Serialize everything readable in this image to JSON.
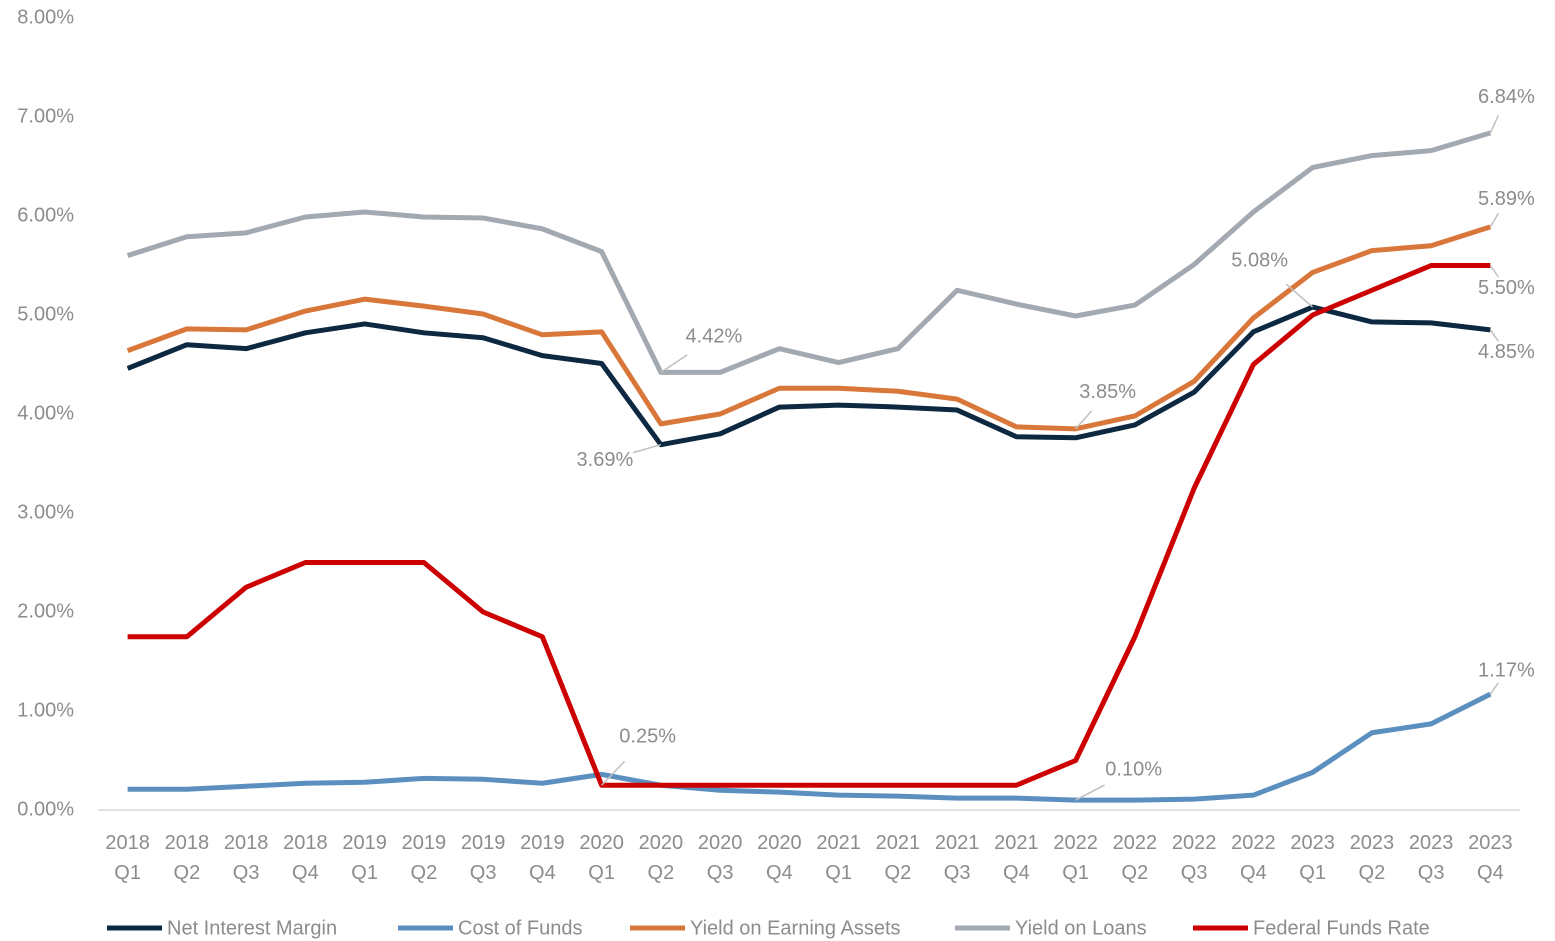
{
  "chart_data": {
    "type": "line",
    "categories": [
      "2018 Q1",
      "2018 Q2",
      "2018 Q3",
      "2018 Q4",
      "2019 Q1",
      "2019 Q2",
      "2019 Q3",
      "2019 Q4",
      "2020 Q1",
      "2020 Q2",
      "2020 Q3",
      "2020 Q4",
      "2021 Q1",
      "2021 Q2",
      "2021 Q3",
      "2021 Q4",
      "2022 Q1",
      "2022 Q2",
      "2022 Q3",
      "2022 Q4",
      "2023 Q1",
      "2023 Q2",
      "2023 Q3",
      "2023 Q4"
    ],
    "series": [
      {
        "name": "Net Interest Margin",
        "color": "#0d2841",
        "values": [
          4.46,
          4.7,
          4.66,
          4.82,
          4.91,
          4.82,
          4.77,
          4.59,
          4.51,
          3.69,
          3.8,
          4.07,
          4.09,
          4.07,
          4.04,
          3.77,
          3.76,
          3.89,
          4.22,
          4.83,
          5.08,
          4.93,
          4.92,
          4.85
        ],
        "value_labels": [
          null,
          null,
          null,
          null,
          null,
          null,
          null,
          null,
          null,
          "3.69%",
          null,
          null,
          null,
          null,
          null,
          null,
          null,
          null,
          null,
          null,
          "5.08%",
          null,
          null,
          "4.85%"
        ]
      },
      {
        "name": "Cost of Funds",
        "color": "#5b8fc0",
        "values": [
          0.21,
          0.21,
          0.24,
          0.27,
          0.28,
          0.32,
          0.31,
          0.27,
          0.36,
          0.25,
          0.2,
          0.18,
          0.15,
          0.14,
          0.12,
          0.12,
          0.1,
          0.1,
          0.11,
          0.15,
          0.38,
          0.78,
          0.87,
          1.17
        ],
        "value_labels": [
          null,
          null,
          null,
          null,
          null,
          null,
          null,
          null,
          null,
          null,
          null,
          null,
          null,
          null,
          null,
          null,
          "0.10%",
          null,
          null,
          null,
          null,
          null,
          null,
          "1.17%"
        ]
      },
      {
        "name": "Yield on Earning Assets",
        "color": "#d9773a",
        "values": [
          4.64,
          4.86,
          4.85,
          5.04,
          5.16,
          5.09,
          5.01,
          4.8,
          4.83,
          3.9,
          4.0,
          4.26,
          4.26,
          4.23,
          4.15,
          3.87,
          3.85,
          3.98,
          4.33,
          4.97,
          5.43,
          5.65,
          5.7,
          5.89
        ],
        "value_labels": [
          null,
          null,
          null,
          null,
          null,
          null,
          null,
          null,
          null,
          null,
          null,
          null,
          null,
          null,
          null,
          null,
          "3.85%",
          null,
          null,
          null,
          null,
          null,
          null,
          "5.89%"
        ]
      },
      {
        "name": "Yield on Loans",
        "color": "#a3a9b0",
        "values": [
          5.6,
          5.79,
          5.83,
          5.99,
          6.04,
          5.99,
          5.98,
          5.87,
          5.64,
          4.42,
          4.42,
          4.66,
          4.52,
          4.66,
          5.25,
          5.11,
          4.99,
          5.1,
          5.51,
          6.04,
          6.49,
          6.61,
          6.66,
          6.84
        ],
        "value_labels": [
          null,
          null,
          null,
          null,
          null,
          null,
          null,
          null,
          null,
          "4.42%",
          null,
          null,
          null,
          null,
          null,
          null,
          null,
          null,
          null,
          null,
          null,
          null,
          null,
          "6.84%"
        ]
      },
      {
        "name": "Federal Funds Rate",
        "color": "#cc0000",
        "values": [
          1.75,
          1.75,
          2.25,
          2.5,
          2.5,
          2.5,
          2.0,
          1.75,
          0.25,
          0.25,
          0.25,
          0.25,
          0.25,
          0.25,
          0.25,
          0.25,
          0.5,
          1.75,
          3.25,
          4.5,
          5.0,
          5.25,
          5.5,
          5.5
        ],
        "value_labels": [
          null,
          null,
          null,
          null,
          null,
          null,
          null,
          null,
          "0.25%",
          null,
          null,
          null,
          null,
          null,
          null,
          null,
          null,
          null,
          null,
          null,
          null,
          null,
          null,
          "5.50%"
        ]
      }
    ],
    "ylim": [
      0,
      8
    ],
    "yticks": [
      {
        "value": 0,
        "label": "0.00%"
      },
      {
        "value": 1,
        "label": "1.00%"
      },
      {
        "value": 2,
        "label": "2.00%"
      },
      {
        "value": 3,
        "label": "3.00%"
      },
      {
        "value": 4,
        "label": "4.00%"
      },
      {
        "value": 5,
        "label": "5.00%"
      },
      {
        "value": 6,
        "label": "6.00%"
      },
      {
        "value": 7,
        "label": "7.00%"
      },
      {
        "value": 8,
        "label": "8.00%"
      }
    ],
    "grid": false,
    "legend": "bottom"
  }
}
